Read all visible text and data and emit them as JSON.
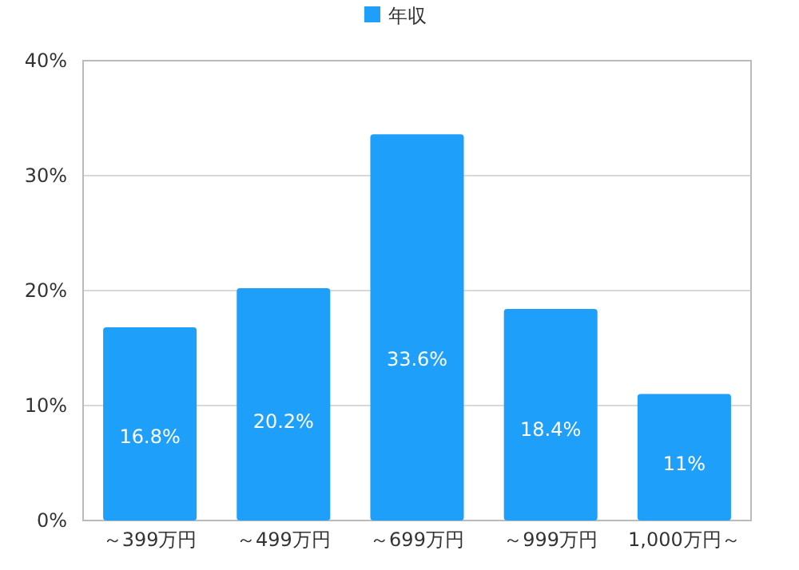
{
  "chart_data": {
    "type": "bar",
    "categories": [
      "～399万円",
      "～499万円",
      "～699万円",
      "～999万円",
      "1,000万円～"
    ],
    "series": [
      {
        "name": "年収",
        "color": "#1ea0fa",
        "values": [
          16.8,
          20.2,
          33.6,
          18.4,
          11
        ],
        "value_labels": [
          "16.8%",
          "20.2%",
          "33.6%",
          "18.4%",
          "11%"
        ]
      }
    ],
    "ylim": [
      0,
      40
    ],
    "yticks": [
      {
        "value": 0,
        "label": "0%"
      },
      {
        "value": 10,
        "label": "10%"
      },
      {
        "value": 20,
        "label": "20%"
      },
      {
        "value": 30,
        "label": "30%"
      },
      {
        "value": 40,
        "label": "40%"
      }
    ],
    "grid": "y",
    "legend": "top"
  }
}
